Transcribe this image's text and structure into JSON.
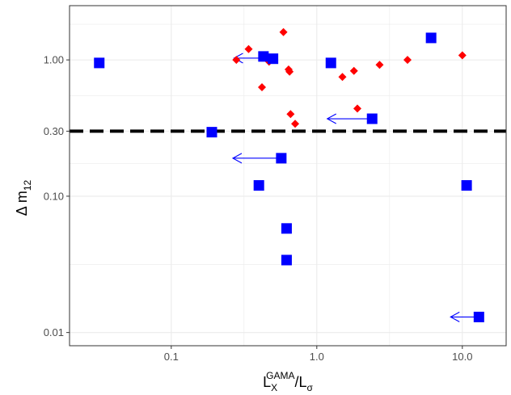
{
  "chart_data": {
    "type": "scatter",
    "title": "",
    "xlabel": {
      "main": "L",
      "sub": "X",
      "sup": "GAMA",
      "rest": "/L",
      "rest_sub": "σ"
    },
    "ylabel": {
      "main": "Δ m",
      "sub": "12"
    },
    "x_scale": "log",
    "y_scale": "log",
    "xlim": [
      0.02,
      20
    ],
    "ylim": [
      0.008,
      2.5
    ],
    "x_ticks": [
      0.1,
      1.0,
      10.0
    ],
    "x_tick_labels": [
      "0.1",
      "1.0",
      "10.0"
    ],
    "y_ticks": [
      0.01,
      0.1,
      0.3,
      1.0
    ],
    "y_tick_labels": [
      "0.01",
      "0.10",
      "0.30",
      "1.00"
    ],
    "grid": true,
    "reference_line": {
      "y": 0.3,
      "style": "dashed",
      "color": "#000000"
    },
    "series": [
      {
        "marker": "diamond",
        "color": "#ff0000",
        "points": [
          {
            "x": 0.28,
            "y": 1.0
          },
          {
            "x": 0.34,
            "y": 1.2
          },
          {
            "x": 0.42,
            "y": 0.63
          },
          {
            "x": 0.47,
            "y": 0.97
          },
          {
            "x": 0.59,
            "y": 1.6
          },
          {
            "x": 0.64,
            "y": 0.85
          },
          {
            "x": 0.65,
            "y": 0.82
          },
          {
            "x": 0.66,
            "y": 0.4
          },
          {
            "x": 0.71,
            "y": 0.34
          },
          {
            "x": 1.5,
            "y": 0.75
          },
          {
            "x": 1.8,
            "y": 0.83
          },
          {
            "x": 1.9,
            "y": 0.44
          },
          {
            "x": 2.7,
            "y": 0.92
          },
          {
            "x": 4.2,
            "y": 1.0
          },
          {
            "x": 10.0,
            "y": 1.08
          }
        ]
      },
      {
        "marker": "square",
        "color": "#0000ff",
        "points": [
          {
            "x": 0.032,
            "y": 0.95
          },
          {
            "x": 0.19,
            "y": 0.295
          },
          {
            "x": 0.4,
            "y": 0.12
          },
          {
            "x": 0.43,
            "y": 1.06
          },
          {
            "x": 0.5,
            "y": 1.02
          },
          {
            "x": 0.57,
            "y": 0.19
          },
          {
            "x": 0.62,
            "y": 0.058
          },
          {
            "x": 0.62,
            "y": 0.034
          },
          {
            "x": 1.25,
            "y": 0.95
          },
          {
            "x": 2.4,
            "y": 0.37
          },
          {
            "x": 6.1,
            "y": 1.45
          },
          {
            "x": 10.7,
            "y": 0.12
          },
          {
            "x": 13.0,
            "y": 0.013
          }
        ]
      }
    ],
    "arrows": [
      {
        "x_from": 0.43,
        "x_to": 0.27,
        "y": 1.03
      },
      {
        "x_from": 2.35,
        "y": 0.37,
        "x_to": 1.18
      },
      {
        "x_from": 0.56,
        "x_to": 0.265,
        "y": 0.19
      },
      {
        "x_from": 12.8,
        "x_to": 8.3,
        "y": 0.013
      }
    ],
    "colors": {
      "diamond": "#ff0000",
      "square": "#0000ff",
      "arrow": "#0000ff",
      "grid": "#ebebeb"
    }
  }
}
